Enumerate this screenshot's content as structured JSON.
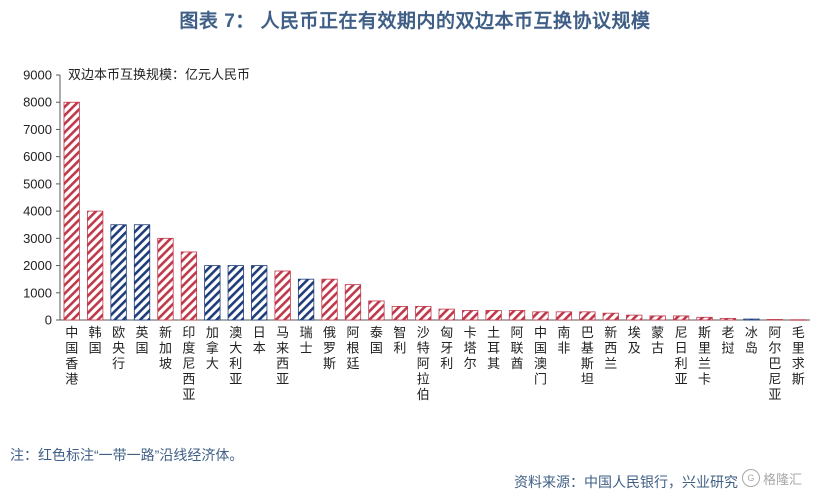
{
  "title": "图表 7： 人民币正在有效期内的双边本币互换协议规模",
  "note": "注：红色标注“一带一路”沿线经济体。",
  "source": "资料来源：中国人民银行，兴业研究",
  "watermark": "格隆汇",
  "colors": {
    "title": "#3f5f86",
    "red": "#c0394b",
    "blue": "#1f3d7a",
    "axis": "#595959"
  },
  "chart_data": {
    "type": "bar",
    "unit_label": "双边本币互换规模：亿元人民币",
    "ylim": [
      0,
      9000
    ],
    "yticks": [
      0,
      1000,
      2000,
      3000,
      4000,
      5000,
      6000,
      7000,
      8000,
      9000
    ],
    "grid": false,
    "legend": "none",
    "categories": [
      "中国香港",
      "韩国",
      "欧央行",
      "英国",
      "新加坡",
      "印度尼西亚",
      "加拿大",
      "澳大利亚",
      "日本",
      "马来西亚",
      "瑞士",
      "俄罗斯",
      "阿根廷",
      "泰国",
      "智利",
      "沙特阿拉伯",
      "匈牙利",
      "卡塔尔",
      "土耳其",
      "阿联酋",
      "中国澳门",
      "南非",
      "巴基斯坦",
      "新西兰",
      "埃及",
      "蒙古",
      "尼日利亚",
      "斯里兰卡",
      "老挝",
      "冰岛",
      "阿尔巴尼亚",
      "毛里求斯"
    ],
    "values": [
      8000,
      4000,
      3500,
      3500,
      3000,
      2500,
      2000,
      2000,
      2000,
      1800,
      1500,
      1500,
      1300,
      700,
      500,
      500,
      400,
      350,
      350,
      350,
      300,
      300,
      300,
      250,
      180,
      150,
      150,
      100,
      60,
      35,
      20,
      10
    ],
    "belt_and_road": [
      true,
      true,
      false,
      false,
      true,
      true,
      false,
      false,
      false,
      true,
      false,
      true,
      true,
      true,
      true,
      true,
      true,
      true,
      true,
      true,
      true,
      true,
      true,
      true,
      true,
      true,
      true,
      true,
      true,
      false,
      true,
      true
    ]
  }
}
